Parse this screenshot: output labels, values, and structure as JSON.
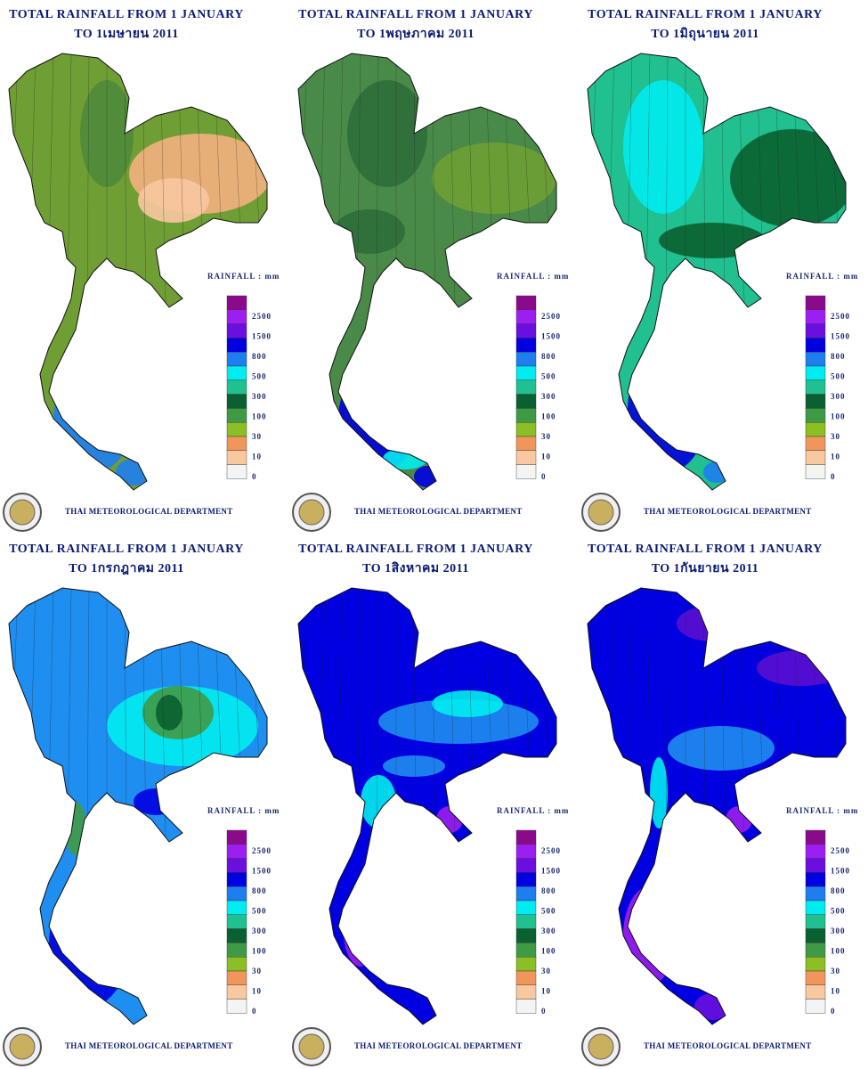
{
  "panels": [
    {
      "title": "TOTAL RAINFALL FROM 1 JANUARY",
      "subtitle": "TO 1เมษายน 2011"
    },
    {
      "title": "TOTAL RAINFALL FROM 1 JANUARY",
      "subtitle": "TO 1พฤษภาคม 2011"
    },
    {
      "title": "TOTAL RAINFALL FROM 1 JANUARY",
      "subtitle": "TO 1มิถุนายน 2011"
    },
    {
      "title": "TOTAL RAINFALL FROM 1 JANUARY",
      "subtitle": "TO 1กรกฎาคม 2011"
    },
    {
      "title": "TOTAL RAINFALL FROM 1 JANUARY",
      "subtitle": "TO 1สิงหาคม 2011"
    },
    {
      "title": "TOTAL RAINFALL FROM 1 JANUARY",
      "subtitle": "TO 1กันยายน 2011"
    }
  ],
  "legend": {
    "title": "RAINFALL : mm",
    "labels": [
      "2500",
      "1500",
      "800",
      "500",
      "300",
      "100",
      "30",
      "10",
      "0"
    ]
  },
  "footer": "THAI METEOROLOGICAL DEPARTMENT"
}
